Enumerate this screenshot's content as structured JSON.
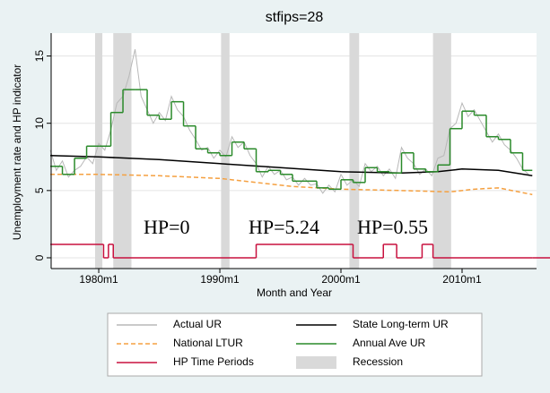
{
  "chart_data": {
    "type": "line",
    "title": "stfips=28",
    "x_label": "Month and Year",
    "y_label": "Unemployment rate and HP indicator",
    "xlim": [
      1976.07,
      2016.15
    ],
    "ylim": [
      -0.8,
      16.7
    ],
    "xticks": [
      {
        "value": 1980,
        "label": "1980m1"
      },
      {
        "value": 1990,
        "label": "1990m1"
      },
      {
        "value": 2000,
        "label": "2000m1"
      },
      {
        "value": 2010,
        "label": "2010m1"
      }
    ],
    "yticks": [
      0,
      5,
      10,
      15
    ],
    "grid": true,
    "annotations": [
      "HP=0",
      "HP=5.24",
      "HP=0.55"
    ],
    "series": [
      {
        "name": "Actual UR",
        "color": "#b8b8b8",
        "x": [
          1976,
          1976.5,
          1977,
          1977.5,
          1978,
          1978.5,
          1979,
          1979.5,
          1980,
          1980.5,
          1981,
          1981.5,
          1982,
          1982.5,
          1983,
          1983.5,
          1984,
          1984.5,
          1985,
          1985.5,
          1986,
          1986.5,
          1987,
          1987.5,
          1988,
          1988.5,
          1989,
          1989.5,
          1990,
          1990.5,
          1991,
          1991.5,
          1992,
          1992.5,
          1993,
          1993.5,
          1994,
          1994.5,
          1995,
          1995.5,
          1996,
          1996.5,
          1997,
          1997.5,
          1998,
          1998.5,
          1999,
          1999.5,
          2000,
          2000.5,
          2001,
          2001.5,
          2002,
          2002.5,
          2003,
          2003.5,
          2004,
          2004.5,
          2005,
          2005.5,
          2006,
          2006.5,
          2007,
          2007.5,
          2008,
          2008.5,
          2009,
          2009.5,
          2010,
          2010.5,
          2011,
          2011.5,
          2012,
          2012.5,
          2013,
          2013.5,
          2014,
          2014.5,
          2015,
          2015.5
        ],
        "values": [
          8.0,
          6.5,
          7.2,
          6.0,
          6.5,
          6.8,
          7.5,
          7.0,
          8.5,
          8.0,
          9.5,
          11.5,
          12.0,
          13.5,
          15.5,
          12.0,
          11.0,
          10.0,
          10.8,
          10.2,
          12.0,
          11.0,
          10.5,
          9.5,
          8.8,
          8.0,
          8.2,
          7.4,
          8.0,
          7.5,
          9.0,
          8.2,
          8.6,
          7.6,
          7.0,
          6.0,
          6.8,
          6.2,
          6.5,
          5.8,
          6.0,
          5.4,
          5.9,
          5.4,
          5.5,
          4.8,
          5.4,
          4.9,
          6.2,
          5.4,
          5.8,
          5.3,
          7.0,
          6.4,
          6.8,
          6.1,
          6.6,
          5.9,
          8.2,
          7.4,
          7.0,
          6.2,
          6.6,
          6.1,
          7.4,
          7.6,
          9.6,
          10.0,
          11.5,
          10.5,
          11.0,
          10.2,
          9.4,
          8.6,
          9.2,
          8.4,
          8.0,
          7.4,
          6.6,
          6.2
        ]
      },
      {
        "name": "State Long-term UR",
        "color": "#000000",
        "x": [
          1976,
          1980,
          1985,
          1990,
          1995,
          2000,
          2005,
          2008,
          2010,
          2013,
          2015.8
        ],
        "values": [
          7.6,
          7.5,
          7.3,
          7.0,
          6.7,
          6.4,
          6.3,
          6.4,
          6.6,
          6.5,
          6.1
        ]
      },
      {
        "name": "National LTUR",
        "color": "#f5a040",
        "dash": true,
        "x": [
          1976,
          1980,
          1985,
          1990,
          1993,
          1996,
          2000,
          2005,
          2009,
          2011,
          2013,
          2015.8
        ],
        "values": [
          6.2,
          6.2,
          6.1,
          5.9,
          5.6,
          5.3,
          5.1,
          5.0,
          4.9,
          5.1,
          5.2,
          4.7
        ]
      },
      {
        "name": "Annual Ave UR",
        "color": "#2a8a2a",
        "step": true,
        "x": [
          1976,
          1977,
          1978,
          1979,
          1980,
          1981,
          1982,
          1983,
          1984,
          1985,
          1986,
          1987,
          1988,
          1989,
          1990,
          1991,
          1992,
          1993,
          1994,
          1995,
          1996,
          1997,
          1998,
          1999,
          2000,
          2001,
          2002,
          2003,
          2004,
          2005,
          2006,
          2007,
          2008,
          2009,
          2010,
          2011,
          2012,
          2013,
          2014,
          2015
        ],
        "values": [
          6.8,
          6.2,
          7.4,
          8.3,
          8.3,
          10.8,
          12.5,
          12.5,
          10.6,
          10.3,
          11.6,
          9.8,
          8.1,
          7.8,
          7.6,
          8.6,
          8.1,
          6.4,
          6.5,
          6.2,
          5.7,
          5.7,
          5.2,
          5.1,
          5.8,
          5.6,
          6.7,
          6.4,
          6.3,
          7.8,
          6.6,
          6.4,
          6.9,
          9.6,
          10.9,
          10.6,
          9.0,
          8.8,
          7.8,
          6.5
        ]
      },
      {
        "name": "HP Time Periods",
        "color": "#c8103e",
        "step": true,
        "x": [
          1976,
          1980.4,
          1980.8,
          1981.2,
          1993,
          2001.0,
          2003.5,
          2004.6,
          2006.7,
          2007.6,
          2015.8
        ],
        "values": [
          1,
          0,
          1,
          0,
          1,
          0,
          1,
          0,
          1,
          0,
          0
        ]
      }
    ],
    "shaded_regions": {
      "name": "Recession",
      "color": "#d9d9d9",
      "ranges": [
        [
          1979.7,
          1980.3
        ],
        [
          1981.2,
          1982.7
        ],
        [
          1990.1,
          1990.8
        ],
        [
          2000.7,
          2001.5
        ],
        [
          2007.6,
          2009.1
        ]
      ]
    }
  }
}
